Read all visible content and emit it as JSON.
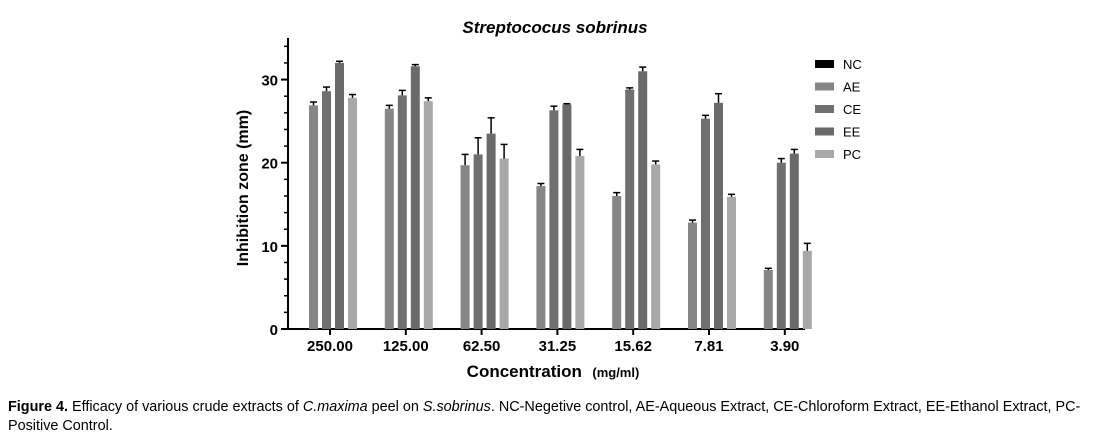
{
  "chart_data": {
    "type": "bar",
    "title": "Streptococus sobrinus",
    "xlabel": "Concentration",
    "xlabel_unit": "(mg/ml)",
    "ylabel": "Inhibition zone (mm)",
    "ylim": [
      0,
      35
    ],
    "yticks": [
      0,
      10,
      20,
      30
    ],
    "grid": false,
    "legend_position": "right",
    "categories": [
      "250.00",
      "125.00",
      "62.50",
      "31.25",
      "15.62",
      "7.81",
      "3.90"
    ],
    "series": [
      {
        "name": "NC",
        "color": "#000000",
        "values": [
          0,
          0,
          0,
          0,
          0,
          0,
          0
        ],
        "errors": [
          0,
          0,
          0,
          0,
          0,
          0,
          0
        ]
      },
      {
        "name": "AE",
        "color": "#868686",
        "values": [
          26.9,
          26.5,
          19.7,
          17.2,
          16.0,
          12.8,
          7.1
        ],
        "errors": [
          0.4,
          0.4,
          1.3,
          0.3,
          0.4,
          0.3,
          0.2
        ]
      },
      {
        "name": "CE",
        "color": "#6f6f6f",
        "values": [
          28.6,
          28.1,
          21.0,
          26.3,
          28.8,
          25.3,
          20.0
        ],
        "errors": [
          0.5,
          0.6,
          2.0,
          0.5,
          0.2,
          0.4,
          0.5
        ]
      },
      {
        "name": "EE",
        "color": "#6a6a6a",
        "values": [
          32.0,
          31.6,
          23.5,
          27.0,
          31.0,
          27.2,
          21.1
        ],
        "errors": [
          0.2,
          0.2,
          1.9,
          0.1,
          0.5,
          1.1,
          0.5
        ]
      },
      {
        "name": "PC",
        "color": "#a8a8a8",
        "values": [
          27.8,
          27.4,
          20.5,
          20.8,
          19.8,
          15.9,
          9.4
        ],
        "errors": [
          0.4,
          0.4,
          1.7,
          0.8,
          0.4,
          0.3,
          0.9
        ]
      }
    ]
  },
  "caption": {
    "label": "Figure 4.",
    "text_1": " Efficacy of various crude extracts of ",
    "species_1": "C.maxima",
    "text_2": " peel on ",
    "species_2": "S.sobrinus",
    "text_3": ". NC-Negetive control, AE-Aqueous Extract, CE-Chloroform Extract, EE-Ethanol Extract, PC-Positive Control."
  }
}
